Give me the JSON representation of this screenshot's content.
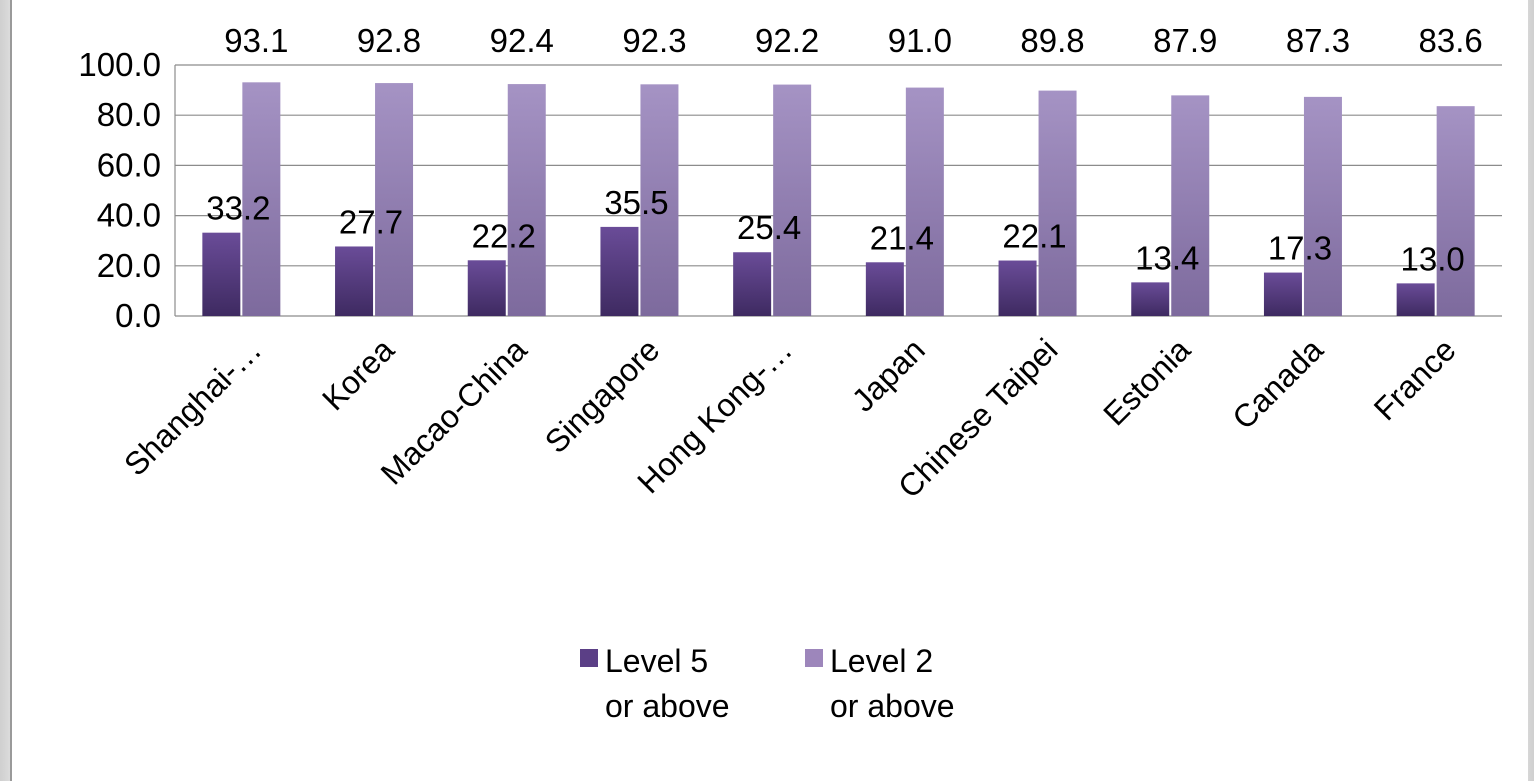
{
  "chart_data": {
    "type": "bar",
    "title": "",
    "xlabel": "",
    "ylabel": "",
    "ylim": [
      0,
      100
    ],
    "yticks": [
      "0.0",
      "20.0",
      "40.0",
      "60.0",
      "80.0",
      "100.0"
    ],
    "grid": true,
    "legend_position": "bottom",
    "categories": [
      "Shanghai-…",
      "Korea",
      "Macao-China",
      "Singapore",
      "Hong Kong-…",
      "Japan",
      "Chinese Taipei",
      "Estonia",
      "Canada",
      "France"
    ],
    "series": [
      {
        "name": "Level 5 or above",
        "legend_lines": [
          "Level 5",
          "or above"
        ],
        "color": "#5b3f86",
        "values": [
          33.2,
          27.7,
          22.2,
          35.5,
          25.4,
          21.4,
          22.1,
          13.4,
          17.3,
          13.0
        ],
        "labels": [
          "33.2",
          "27.7",
          "22.2",
          "35.5",
          "25.4",
          "21.4",
          "22.1",
          "13.4",
          "17.3",
          "13.0"
        ]
      },
      {
        "name": "Level 2 or above",
        "legend_lines": [
          "Level 2",
          "or above"
        ],
        "color": "#9d86bb",
        "values": [
          93.1,
          92.8,
          92.4,
          92.3,
          92.2,
          91.0,
          89.8,
          87.9,
          87.3,
          83.6
        ],
        "labels": [
          "93.1",
          "92.8",
          "92.4",
          "92.3",
          "92.2",
          "91.0",
          "89.8",
          "87.9",
          "87.3",
          "83.6"
        ]
      }
    ]
  }
}
